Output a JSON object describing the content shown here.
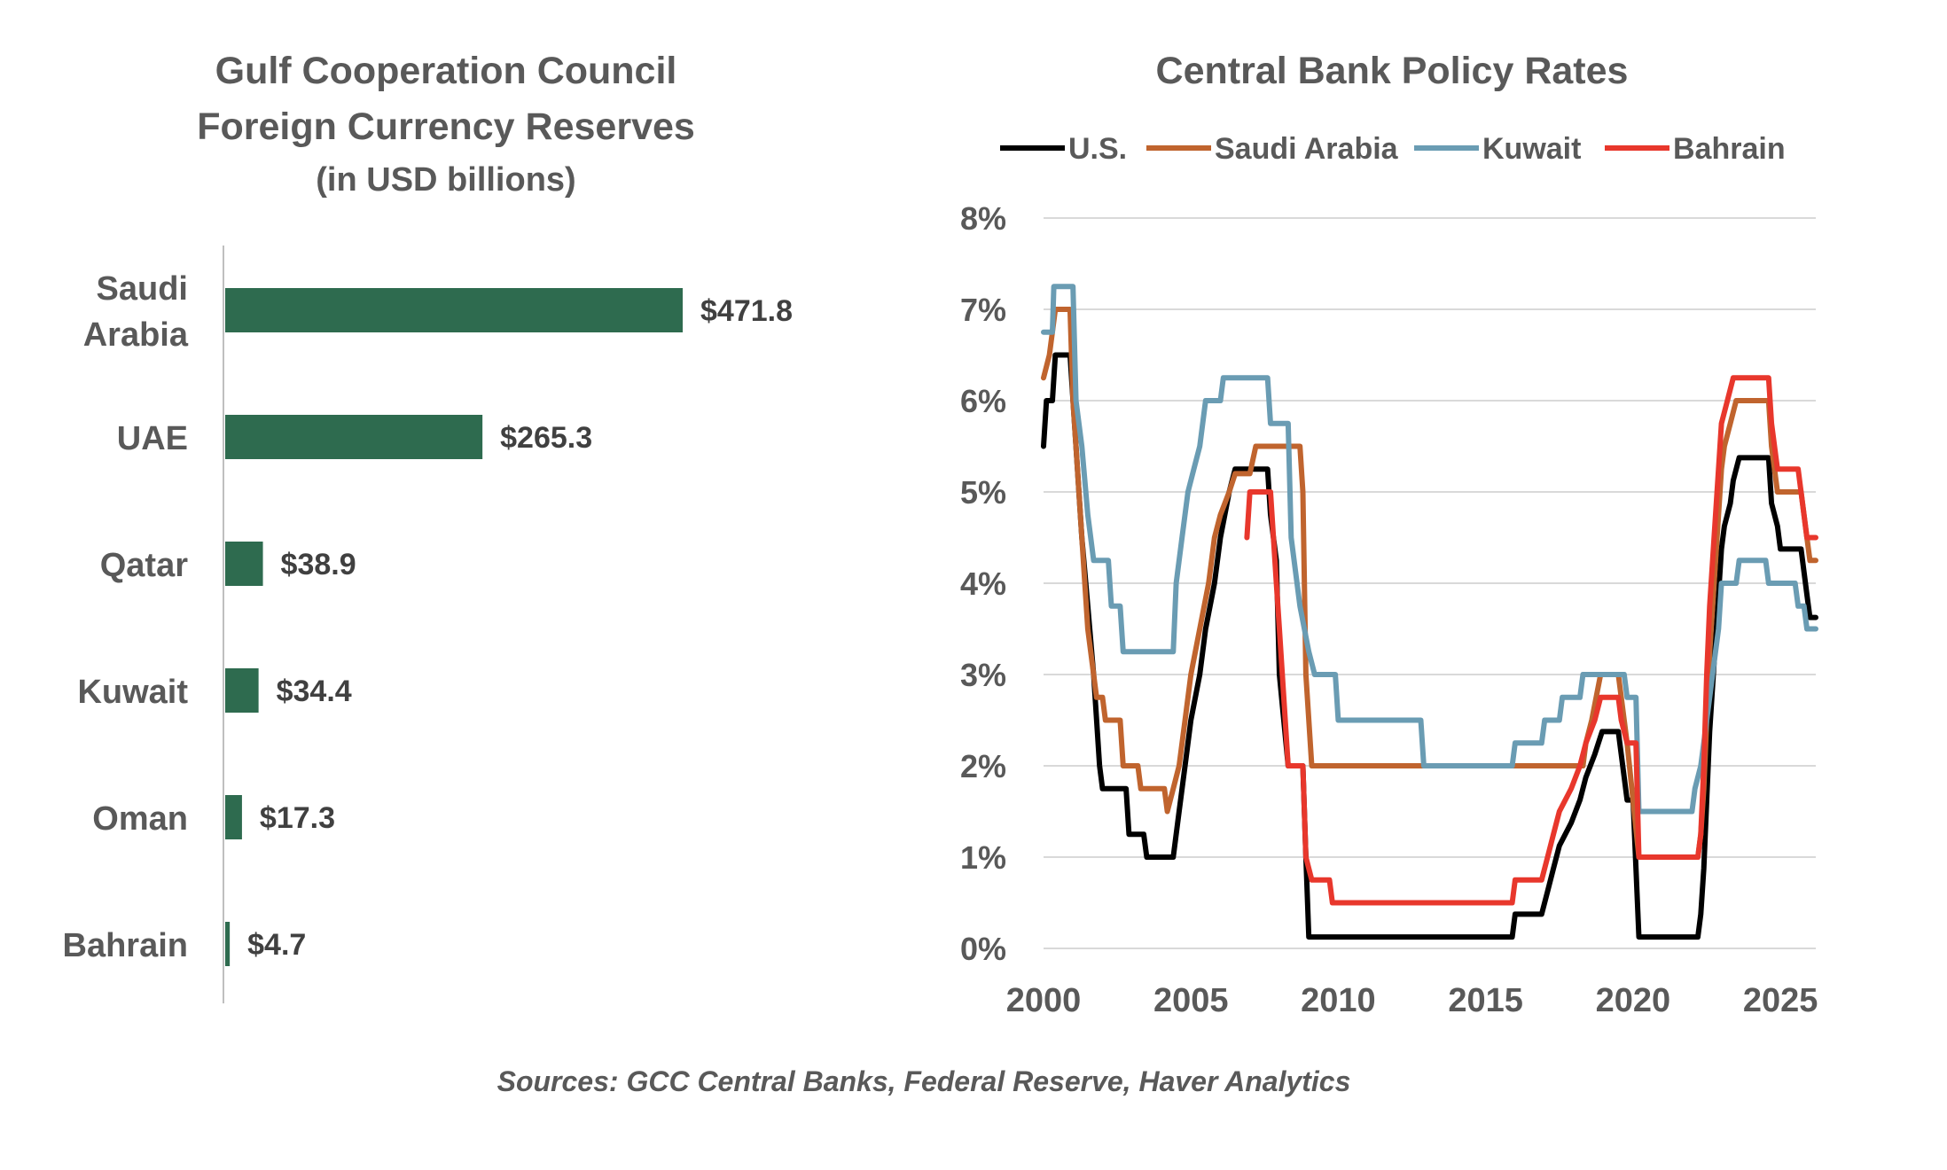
{
  "charts": [
    {
      "title_lines": [
        "Gulf Cooperation Council",
        "Foreign Currency Reserves"
      ],
      "subtitle": "(in USD billions)"
    },
    {
      "title": "Central Bank Policy Rates"
    }
  ],
  "source": "Sources: GCC Central Banks, Federal Reserve, Haver Analytics",
  "chart_data": [
    {
      "type": "bar",
      "orientation": "horizontal",
      "title": "Gulf Cooperation Council Foreign Currency Reserves",
      "subtitle": "(in USD billions)",
      "categories": [
        "Saudi Arabia",
        "UAE",
        "Qatar",
        "Kuwait",
        "Oman",
        "Bahrain"
      ],
      "category_lines": [
        [
          "Saudi",
          "Arabia"
        ],
        [
          "UAE"
        ],
        [
          "Qatar"
        ],
        [
          "Kuwait"
        ],
        [
          "Oman"
        ],
        [
          "Bahrain"
        ]
      ],
      "values": [
        471.8,
        265.3,
        38.9,
        34.4,
        17.3,
        4.7
      ],
      "data_labels": [
        "$471.8",
        "$265.3",
        "$38.9",
        "$34.4",
        "$17.3",
        "$4.7"
      ],
      "bar_color": "#2e6b4f",
      "axis_color": "#bfbfbf"
    },
    {
      "type": "line",
      "title": "Central Bank Policy Rates",
      "xlim": [
        2000,
        2026.2
      ],
      "ylim": [
        0,
        8
      ],
      "x_ticks": [
        2000,
        2005,
        2010,
        2015,
        2020,
        2025
      ],
      "x_tick_labels": [
        "2000",
        "2005",
        "2010",
        "2015",
        "2020",
        "2025"
      ],
      "y_ticks": [
        0,
        1,
        2,
        3,
        4,
        5,
        6,
        7,
        8
      ],
      "y_tick_labels": [
        "0%",
        "1%",
        "2%",
        "3%",
        "4%",
        "5%",
        "6%",
        "7%",
        "8%"
      ],
      "grid": "horizontal",
      "legend_position": "top",
      "gridline_color": "#d9d9d9",
      "series": [
        {
          "name": "U.S.",
          "color": "#000000",
          "points": [
            [
              2000.0,
              5.5
            ],
            [
              2000.1,
              6.0
            ],
            [
              2000.3,
              6.0
            ],
            [
              2000.4,
              6.5
            ],
            [
              2000.9,
              6.5
            ],
            [
              2001.1,
              5.5
            ],
            [
              2001.3,
              4.5
            ],
            [
              2001.5,
              3.75
            ],
            [
              2001.7,
              3.0
            ],
            [
              2001.9,
              2.0
            ],
            [
              2002.0,
              1.75
            ],
            [
              2002.8,
              1.75
            ],
            [
              2002.9,
              1.25
            ],
            [
              2003.4,
              1.25
            ],
            [
              2003.5,
              1.0
            ],
            [
              2004.4,
              1.0
            ],
            [
              2004.6,
              1.5
            ],
            [
              2004.8,
              2.0
            ],
            [
              2005.0,
              2.5
            ],
            [
              2005.3,
              3.0
            ],
            [
              2005.5,
              3.5
            ],
            [
              2005.8,
              4.0
            ],
            [
              2006.0,
              4.5
            ],
            [
              2006.3,
              5.0
            ],
            [
              2006.5,
              5.25
            ],
            [
              2007.6,
              5.25
            ],
            [
              2007.7,
              4.75
            ],
            [
              2007.9,
              4.25
            ],
            [
              2008.0,
              3.0
            ],
            [
              2008.3,
              2.0
            ],
            [
              2008.8,
              2.0
            ],
            [
              2008.9,
              1.0
            ],
            [
              2009.0,
              0.125
            ],
            [
              2015.9,
              0.125
            ],
            [
              2016.0,
              0.375
            ],
            [
              2016.9,
              0.375
            ],
            [
              2017.1,
              0.625
            ],
            [
              2017.3,
              0.875
            ],
            [
              2017.5,
              1.125
            ],
            [
              2017.9,
              1.375
            ],
            [
              2018.2,
              1.625
            ],
            [
              2018.4,
              1.875
            ],
            [
              2018.7,
              2.125
            ],
            [
              2018.95,
              2.375
            ],
            [
              2019.5,
              2.375
            ],
            [
              2019.6,
              2.125
            ],
            [
              2019.7,
              1.875
            ],
            [
              2019.8,
              1.625
            ],
            [
              2020.0,
              1.625
            ],
            [
              2020.2,
              0.125
            ],
            [
              2022.2,
              0.125
            ],
            [
              2022.3,
              0.375
            ],
            [
              2022.4,
              0.875
            ],
            [
              2022.5,
              1.625
            ],
            [
              2022.6,
              2.375
            ],
            [
              2022.75,
              3.125
            ],
            [
              2022.9,
              3.875
            ],
            [
              2023.0,
              4.375
            ],
            [
              2023.1,
              4.625
            ],
            [
              2023.3,
              4.875
            ],
            [
              2023.4,
              5.125
            ],
            [
              2023.6,
              5.375
            ],
            [
              2024.6,
              5.375
            ],
            [
              2024.7,
              4.875
            ],
            [
              2024.9,
              4.625
            ],
            [
              2025.0,
              4.375
            ],
            [
              2025.7,
              4.375
            ],
            [
              2025.8,
              4.125
            ],
            [
              2025.9,
              3.875
            ],
            [
              2026.0,
              3.625
            ],
            [
              2026.2,
              3.625
            ]
          ]
        },
        {
          "name": "Saudi Arabia",
          "color": "#c0642e",
          "points": [
            [
              2000.0,
              6.25
            ],
            [
              2000.2,
              6.5
            ],
            [
              2000.4,
              7.0
            ],
            [
              2000.9,
              7.0
            ],
            [
              2001.0,
              6.0
            ],
            [
              2001.1,
              5.5
            ],
            [
              2001.3,
              4.5
            ],
            [
              2001.5,
              3.5
            ],
            [
              2001.7,
              3.0
            ],
            [
              2001.8,
              2.75
            ],
            [
              2002.0,
              2.75
            ],
            [
              2002.1,
              2.5
            ],
            [
              2002.6,
              2.5
            ],
            [
              2002.7,
              2.0
            ],
            [
              2003.2,
              2.0
            ],
            [
              2003.3,
              1.75
            ],
            [
              2004.1,
              1.75
            ],
            [
              2004.2,
              1.5
            ],
            [
              2004.4,
              1.75
            ],
            [
              2004.6,
              2.0
            ],
            [
              2004.8,
              2.5
            ],
            [
              2005.0,
              3.0
            ],
            [
              2005.3,
              3.5
            ],
            [
              2005.6,
              4.0
            ],
            [
              2005.8,
              4.5
            ],
            [
              2006.0,
              4.75
            ],
            [
              2006.3,
              5.0
            ],
            [
              2006.5,
              5.2
            ],
            [
              2007.0,
              5.2
            ],
            [
              2007.2,
              5.5
            ],
            [
              2008.7,
              5.5
            ],
            [
              2008.8,
              5.0
            ],
            [
              2008.9,
              3.0
            ],
            [
              2009.1,
              2.0
            ],
            [
              2018.3,
              2.0
            ],
            [
              2018.4,
              2.25
            ],
            [
              2018.6,
              2.5
            ],
            [
              2018.9,
              3.0
            ],
            [
              2019.5,
              3.0
            ],
            [
              2019.6,
              2.75
            ],
            [
              2019.7,
              2.5
            ],
            [
              2019.8,
              2.25
            ],
            [
              2020.2,
              1.0
            ],
            [
              2022.2,
              1.0
            ],
            [
              2022.3,
              1.25
            ],
            [
              2022.4,
              1.75
            ],
            [
              2022.5,
              2.5
            ],
            [
              2022.6,
              3.25
            ],
            [
              2022.75,
              4.0
            ],
            [
              2022.9,
              4.75
            ],
            [
              2023.0,
              5.25
            ],
            [
              2023.1,
              5.5
            ],
            [
              2023.3,
              5.75
            ],
            [
              2023.5,
              6.0
            ],
            [
              2024.6,
              6.0
            ],
            [
              2024.7,
              5.5
            ],
            [
              2024.9,
              5.0
            ],
            [
              2025.7,
              5.0
            ],
            [
              2025.8,
              4.75
            ],
            [
              2025.9,
              4.5
            ],
            [
              2026.0,
              4.25
            ],
            [
              2026.2,
              4.25
            ]
          ]
        },
        {
          "name": "Kuwait",
          "color": "#6a9cb3",
          "points": [
            [
              2000.0,
              6.75
            ],
            [
              2000.3,
              6.75
            ],
            [
              2000.35,
              7.25
            ],
            [
              2001.0,
              7.25
            ],
            [
              2001.1,
              6.0
            ],
            [
              2001.3,
              5.5
            ],
            [
              2001.5,
              4.75
            ],
            [
              2001.7,
              4.25
            ],
            [
              2002.2,
              4.25
            ],
            [
              2002.3,
              3.75
            ],
            [
              2002.6,
              3.75
            ],
            [
              2002.7,
              3.25
            ],
            [
              2004.4,
              3.25
            ],
            [
              2004.5,
              4.0
            ],
            [
              2004.7,
              4.5
            ],
            [
              2004.9,
              5.0
            ],
            [
              2005.1,
              5.25
            ],
            [
              2005.3,
              5.5
            ],
            [
              2005.5,
              6.0
            ],
            [
              2006.0,
              6.0
            ],
            [
              2006.1,
              6.25
            ],
            [
              2007.6,
              6.25
            ],
            [
              2007.7,
              5.75
            ],
            [
              2008.3,
              5.75
            ],
            [
              2008.4,
              4.5
            ],
            [
              2008.7,
              3.75
            ],
            [
              2009.0,
              3.25
            ],
            [
              2009.2,
              3.0
            ],
            [
              2009.9,
              3.0
            ],
            [
              2010.0,
              2.5
            ],
            [
              2012.8,
              2.5
            ],
            [
              2012.9,
              2.0
            ],
            [
              2015.9,
              2.0
            ],
            [
              2016.0,
              2.25
            ],
            [
              2016.9,
              2.25
            ],
            [
              2017.0,
              2.5
            ],
            [
              2017.5,
              2.5
            ],
            [
              2017.6,
              2.75
            ],
            [
              2018.2,
              2.75
            ],
            [
              2018.3,
              3.0
            ],
            [
              2019.7,
              3.0
            ],
            [
              2019.8,
              2.75
            ],
            [
              2020.1,
              2.75
            ],
            [
              2020.2,
              1.5
            ],
            [
              2022.0,
              1.5
            ],
            [
              2022.1,
              1.75
            ],
            [
              2022.3,
              2.0
            ],
            [
              2022.5,
              2.5
            ],
            [
              2022.7,
              3.0
            ],
            [
              2022.9,
              3.5
            ],
            [
              2023.0,
              4.0
            ],
            [
              2023.5,
              4.0
            ],
            [
              2023.6,
              4.25
            ],
            [
              2024.5,
              4.25
            ],
            [
              2024.6,
              4.0
            ],
            [
              2025.5,
              4.0
            ],
            [
              2025.6,
              3.75
            ],
            [
              2025.8,
              3.75
            ],
            [
              2025.9,
              3.5
            ],
            [
              2026.2,
              3.5
            ]
          ]
        },
        {
          "name": "Bahrain",
          "color": "#e8372c",
          "points": [
            [
              2006.9,
              4.5
            ],
            [
              2007.0,
              5.0
            ],
            [
              2007.7,
              5.0
            ],
            [
              2007.8,
              4.5
            ],
            [
              2007.9,
              4.0
            ],
            [
              2008.0,
              3.5
            ],
            [
              2008.1,
              3.0
            ],
            [
              2008.3,
              2.0
            ],
            [
              2008.8,
              2.0
            ],
            [
              2008.9,
              1.0
            ],
            [
              2009.1,
              0.75
            ],
            [
              2009.7,
              0.75
            ],
            [
              2009.8,
              0.5
            ],
            [
              2015.9,
              0.5
            ],
            [
              2016.0,
              0.75
            ],
            [
              2016.9,
              0.75
            ],
            [
              2017.1,
              1.0
            ],
            [
              2017.3,
              1.25
            ],
            [
              2017.5,
              1.5
            ],
            [
              2017.9,
              1.75
            ],
            [
              2018.2,
              2.0
            ],
            [
              2018.4,
              2.25
            ],
            [
              2018.7,
              2.5
            ],
            [
              2018.9,
              2.75
            ],
            [
              2019.5,
              2.75
            ],
            [
              2019.6,
              2.5
            ],
            [
              2019.8,
              2.25
            ],
            [
              2020.1,
              2.25
            ],
            [
              2020.2,
              1.0
            ],
            [
              2022.2,
              1.0
            ],
            [
              2022.3,
              1.25
            ],
            [
              2022.4,
              2.0
            ],
            [
              2022.5,
              3.0
            ],
            [
              2022.6,
              3.75
            ],
            [
              2022.75,
              4.5
            ],
            [
              2022.9,
              5.25
            ],
            [
              2023.0,
              5.75
            ],
            [
              2023.2,
              6.0
            ],
            [
              2023.4,
              6.25
            ],
            [
              2024.6,
              6.25
            ],
            [
              2024.7,
              5.75
            ],
            [
              2024.9,
              5.25
            ],
            [
              2025.6,
              5.25
            ],
            [
              2025.7,
              5.0
            ],
            [
              2025.8,
              4.75
            ],
            [
              2025.9,
              4.5
            ],
            [
              2026.2,
              4.5
            ]
          ]
        }
      ]
    }
  ]
}
